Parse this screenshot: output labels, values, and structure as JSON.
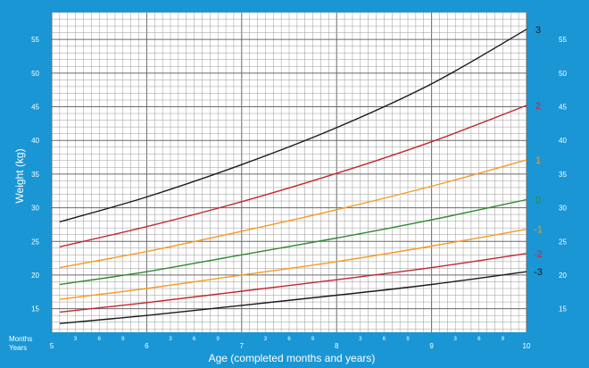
{
  "chart_data": {
    "type": "line",
    "xlabel": "Age (completed months and years)",
    "ylabel": "Weight (kg)",
    "x_unit_labels": {
      "months": "Months",
      "years": "Years"
    },
    "xlim": [
      5,
      10
    ],
    "ylim": [
      11.5,
      59
    ],
    "x_major_ticks": [
      "5",
      "6",
      "7",
      "8",
      "9",
      "10"
    ],
    "x_minor_ticks": [
      "3",
      "6",
      "9"
    ],
    "y_ticks": [
      15,
      20,
      25,
      30,
      35,
      40,
      45,
      50,
      55
    ],
    "grid": true,
    "colors": {
      "background": "#1a96d4",
      "plot_bg": "#ffffff",
      "black": "#1a1a1a",
      "red": "#c0282e",
      "orange": "#f59b24",
      "green": "#2f8a2f"
    },
    "x": [
      5.0833,
      6,
      7,
      8,
      9,
      10
    ],
    "series": [
      {
        "name": "3",
        "color": "#1a1a1a",
        "values": [
          27.9,
          31.6,
          36.4,
          41.9,
          48.4,
          56.5
        ]
      },
      {
        "name": "2",
        "color": "#c0282e",
        "values": [
          24.2,
          27.2,
          30.9,
          35.1,
          39.8,
          45.2
        ]
      },
      {
        "name": "1",
        "color": "#f59b24",
        "values": [
          21.1,
          23.5,
          26.5,
          29.7,
          33.2,
          37.1
        ]
      },
      {
        "name": "0",
        "color": "#2f8a2f",
        "values": [
          18.6,
          20.5,
          23.0,
          25.5,
          28.2,
          31.2
        ]
      },
      {
        "name": "-1",
        "color": "#f59b24",
        "values": [
          16.4,
          18.0,
          20.0,
          22.0,
          24.3,
          26.8
        ]
      },
      {
        "name": "-2",
        "color": "#c0282e",
        "values": [
          14.5,
          15.9,
          17.6,
          19.3,
          21.1,
          23.2
        ]
      },
      {
        "name": "-3",
        "color": "#1a1a1a",
        "values": [
          12.8,
          14.0,
          15.5,
          17.0,
          18.6,
          20.5
        ]
      }
    ]
  }
}
